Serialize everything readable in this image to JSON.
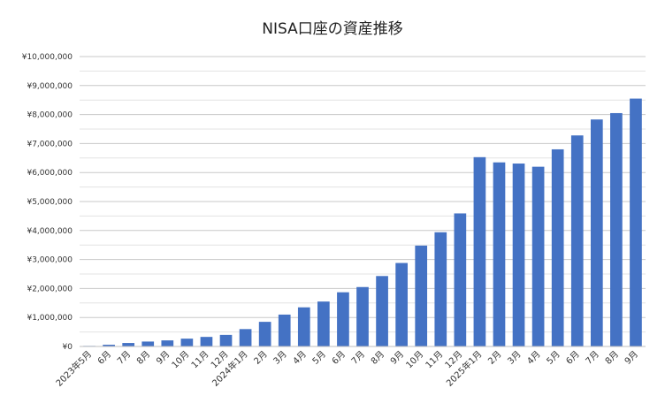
{
  "chart_data": {
    "type": "bar",
    "title": "NISA口座の資産推移",
    "xlabel": "",
    "ylabel": "",
    "ylim": [
      0,
      10000000
    ],
    "ytick_step": 1000000,
    "ytick_labels": [
      "¥0",
      "¥1,000,000",
      "¥2,000,000",
      "¥3,000,000",
      "¥4,000,000",
      "¥5,000,000",
      "¥6,000,000",
      "¥7,000,000",
      "¥8,000,000",
      "¥9,000,000",
      "¥10,000,000"
    ],
    "minor_grid": true,
    "legend": "none",
    "bar_color": "#4472C4",
    "categories": [
      "2023年5月",
      "6月",
      "7月",
      "8月",
      "9月",
      "10月",
      "11月",
      "12月",
      "2024年1月",
      "2月",
      "3月",
      "4月",
      "5月",
      "6月",
      "7月",
      "8月",
      "9月",
      "10月",
      "11月",
      "12月",
      "2025年1月",
      "2月",
      "3月",
      "4月",
      "5月",
      "6月",
      "7月",
      "8月",
      "9月"
    ],
    "values": [
      20000,
      60000,
      120000,
      170000,
      210000,
      270000,
      330000,
      400000,
      600000,
      850000,
      1100000,
      1350000,
      1550000,
      1870000,
      2050000,
      2430000,
      2880000,
      3480000,
      3940000,
      4590000,
      6530000,
      6350000,
      6310000,
      6200000,
      6800000,
      7280000,
      7830000,
      8050000,
      8550000
    ]
  }
}
